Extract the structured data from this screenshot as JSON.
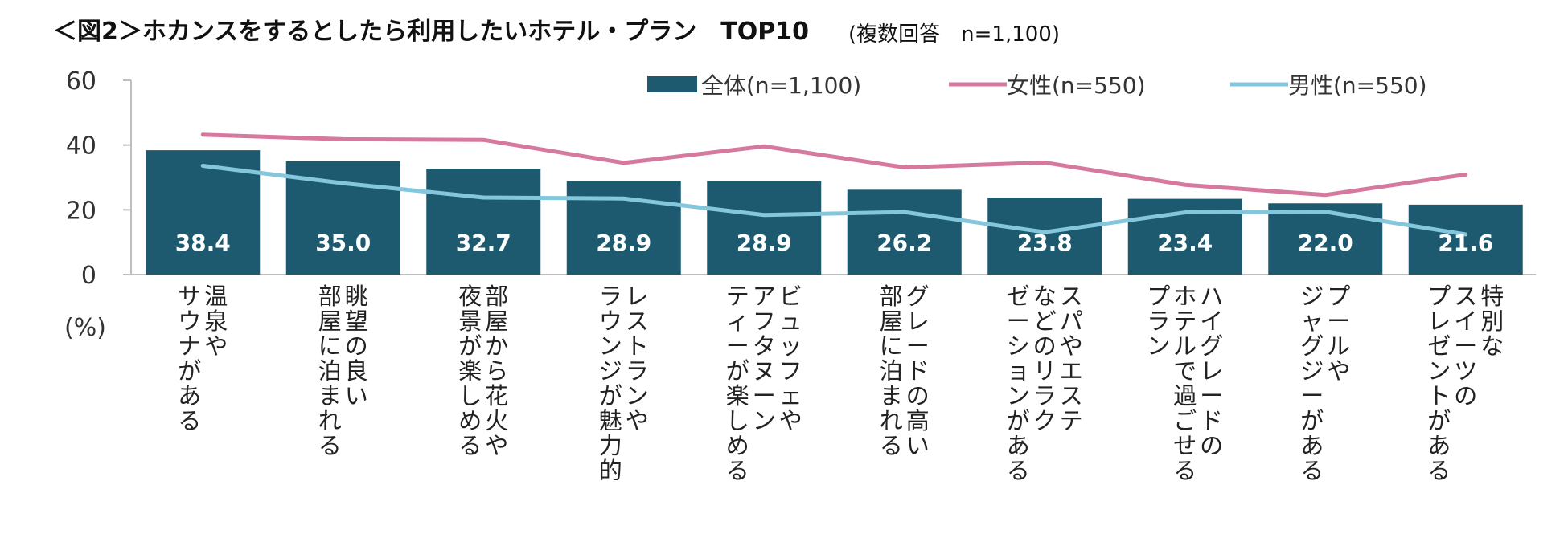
{
  "title": "＜図2＞ホカンスをするとしたら利用したいホテル・プラン　TOP10",
  "subtitle": "(複数回答　n=1,100)",
  "colors": {
    "bar": "#1d5a70",
    "female": "#d57a9e",
    "male": "#84c7dd",
    "axis": "#bfbfbf"
  },
  "chart_data": {
    "type": "bar",
    "title": "ホカンスをするとしたら利用したいホテル・プラン TOP10",
    "ylabel": "(%)",
    "ylim": [
      0,
      60
    ],
    "yticks": [
      "60",
      "40",
      "20",
      "0"
    ],
    "categories": [
      [
        "温泉や",
        "サウナがある"
      ],
      [
        "眺望の良い",
        "部屋に泊まれる"
      ],
      [
        "部屋から花火や",
        "夜景が楽しめる"
      ],
      [
        "レストランや",
        "ラウンジが魅力的"
      ],
      [
        "ビュッフェや",
        "アフタヌーン",
        "ティーが楽しめる"
      ],
      [
        "グレードの高い",
        "部屋に泊まれる"
      ],
      [
        "スパやエステ",
        "などのリラク",
        "ゼーションがある"
      ],
      [
        "ハイグレードの",
        "ホテルで過ごせる",
        "プラン"
      ],
      [
        "プールや",
        "ジャグジーがある"
      ],
      [
        "特別な",
        "スイーツの",
        "プレゼントがある"
      ]
    ],
    "series": [
      {
        "name": "全体(n=1,100)",
        "type": "bar",
        "values": [
          38.4,
          35.0,
          32.7,
          28.9,
          28.9,
          26.2,
          23.8,
          23.4,
          22.0,
          21.6
        ],
        "labels": [
          "38.4",
          "35.0",
          "32.7",
          "28.9",
          "28.9",
          "26.2",
          "23.8",
          "23.4",
          "22.0",
          "21.6"
        ]
      },
      {
        "name": "女性(n=550)",
        "type": "line",
        "values": [
          43.2,
          41.8,
          41.6,
          34.5,
          39.6,
          33.1,
          34.6,
          27.7,
          24.6,
          30.9
        ]
      },
      {
        "name": "男性(n=550)",
        "type": "line",
        "values": [
          33.6,
          28.2,
          23.8,
          23.5,
          18.4,
          19.3,
          13.1,
          19.2,
          19.4,
          12.4
        ]
      }
    ]
  }
}
